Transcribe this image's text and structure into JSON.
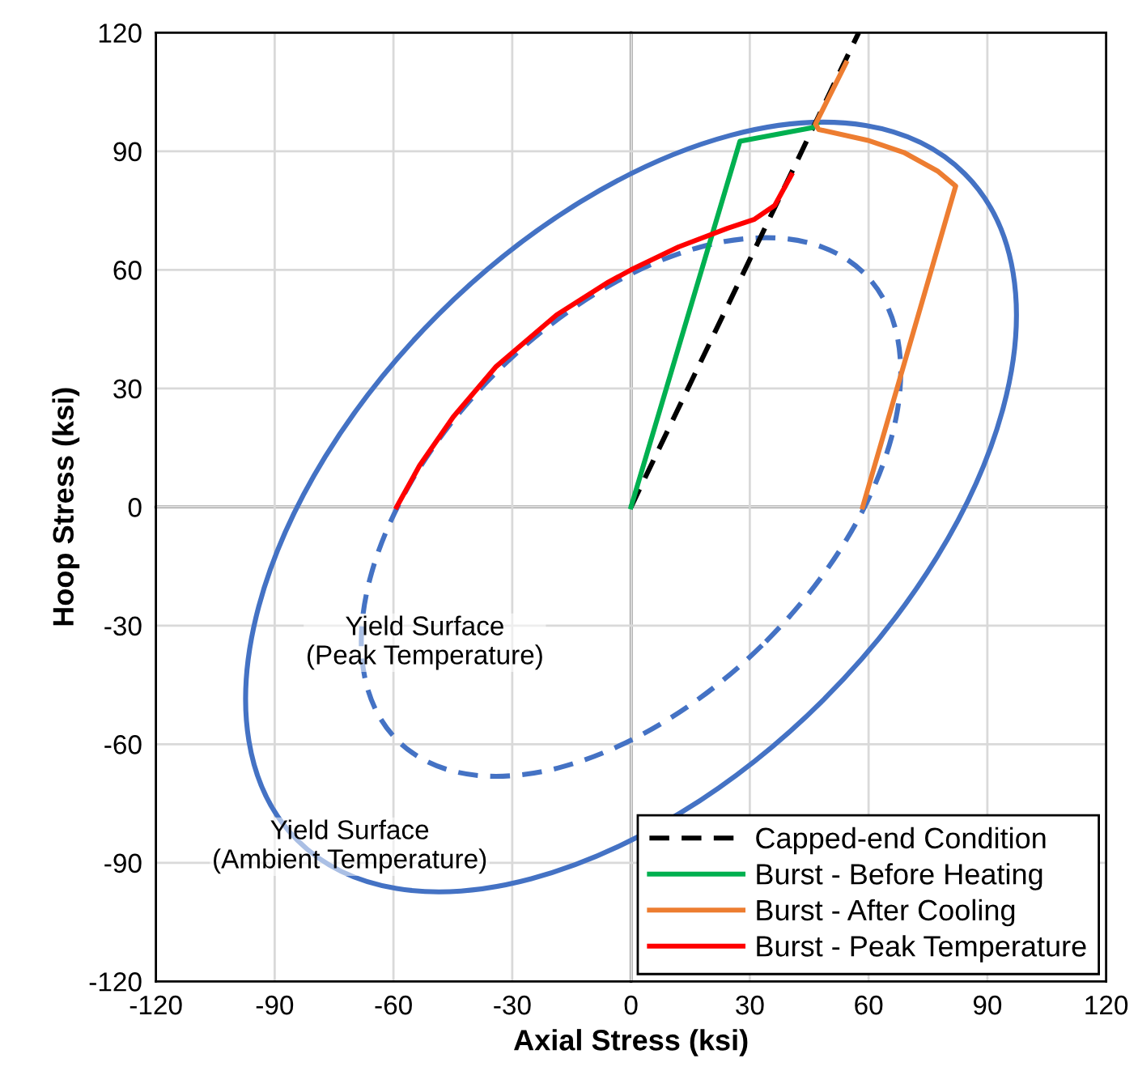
{
  "chart_data": {
    "type": "line",
    "xlabel": "Axial Stress (ksi)",
    "ylabel": "Hoop Stress (ksi)",
    "xlim": [
      -120,
      120
    ],
    "ylim": [
      -120,
      120
    ],
    "xticks": [
      -120,
      -90,
      -60,
      -30,
      0,
      30,
      60,
      90,
      120
    ],
    "yticks": [
      -120,
      -90,
      -60,
      -30,
      0,
      30,
      60,
      90,
      120
    ],
    "grid": true,
    "legend": "bottom right",
    "marker": "none",
    "annotations": [
      "Yield Surface\n(Peak Temperature)",
      "Yield Surface\n(Ambient Temperature)"
    ],
    "series": [
      {
        "name": "Capped-end Condition",
        "color": "#000000",
        "line_style": "dashed",
        "x": [
          0,
          57.5
        ],
        "values": [
          0,
          120
        ]
      },
      {
        "name": "Burst - Before Heating",
        "color": "#00b050",
        "line_style": "solid",
        "x": [
          0,
          27.5,
          46,
          47
        ],
        "values": [
          0,
          92.5,
          96,
          97
        ]
      },
      {
        "name": "Burst - After Cooling",
        "color": "#ed7d31",
        "line_style": "solid",
        "x": [
          54.3,
          46.6,
          47.4,
          59.7,
          68.9,
          77.4,
          82,
          58.5
        ],
        "values": [
          112.3,
          96.9,
          95.5,
          92.8,
          89.7,
          85,
          81.2,
          0
        ]
      },
      {
        "name": "Burst - Peak Temperature",
        "color": "#ff0000",
        "line_style": "solid",
        "x": [
          -59.2,
          -53.4,
          -44.9,
          -34.2,
          -18.8,
          -5.7,
          0,
          12,
          24.3,
          31.2,
          36.3,
          40.5
        ],
        "values": [
          0,
          10.5,
          22.8,
          35.4,
          48.6,
          56.9,
          60,
          65.8,
          70.5,
          72.8,
          76.3,
          84
        ]
      }
    ]
  }
}
